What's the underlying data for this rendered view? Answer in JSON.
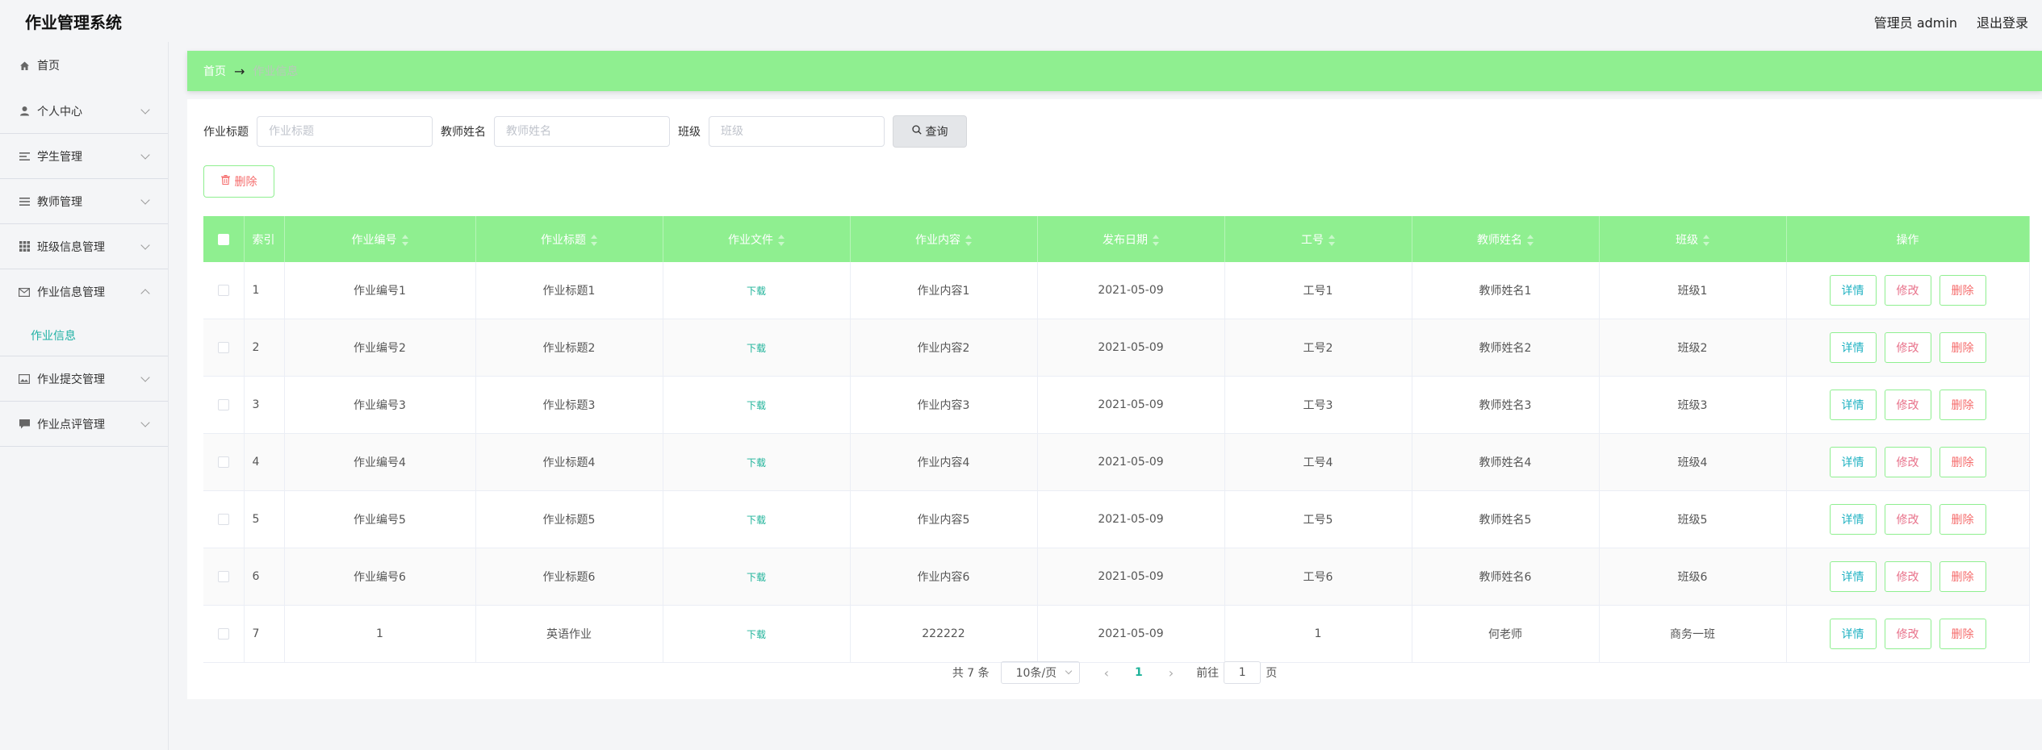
{
  "header": {
    "title": "作业管理系统",
    "user": "管理员 admin",
    "logout": "退出登录"
  },
  "sidebar": {
    "items": [
      {
        "label": "首页",
        "icon": "home-icon"
      },
      {
        "label": "个人中心",
        "icon": "user-icon"
      },
      {
        "label": "学生管理",
        "icon": "list-icon"
      },
      {
        "label": "教师管理",
        "icon": "menu-icon"
      },
      {
        "label": "班级信息管理",
        "icon": "grid-icon"
      },
      {
        "label": "作业信息管理",
        "icon": "message-icon"
      },
      {
        "label": "作业提交管理",
        "icon": "picture-icon"
      },
      {
        "label": "作业点评管理",
        "icon": "comment-icon"
      }
    ],
    "sub_item": "作业信息"
  },
  "breadcrumb": {
    "home": "首页",
    "current": "作业信息"
  },
  "search": {
    "title_label": "作业标题",
    "title_placeholder": "作业标题",
    "teacher_label": "教师姓名",
    "teacher_placeholder": "教师姓名",
    "class_label": "班级",
    "class_placeholder": "班级",
    "query_label": "查询"
  },
  "toolbar": {
    "delete_label": "删除"
  },
  "table": {
    "headers": {
      "index": "索引",
      "code": "作业编号",
      "title": "作业标题",
      "file": "作业文件",
      "content": "作业内容",
      "date": "发布日期",
      "job_no": "工号",
      "teacher": "教师姓名",
      "class": "班级",
      "ops": "操作"
    },
    "rows": [
      {
        "index": "1",
        "code": "作业编号1",
        "title": "作业标题1",
        "file": "下载",
        "content": "作业内容1",
        "date": "2021-05-09",
        "job_no": "工号1",
        "teacher": "教师姓名1",
        "class": "班级1"
      },
      {
        "index": "2",
        "code": "作业编号2",
        "title": "作业标题2",
        "file": "下载",
        "content": "作业内容2",
        "date": "2021-05-09",
        "job_no": "工号2",
        "teacher": "教师姓名2",
        "class": "班级2"
      },
      {
        "index": "3",
        "code": "作业编号3",
        "title": "作业标题3",
        "file": "下载",
        "content": "作业内容3",
        "date": "2021-05-09",
        "job_no": "工号3",
        "teacher": "教师姓名3",
        "class": "班级3"
      },
      {
        "index": "4",
        "code": "作业编号4",
        "title": "作业标题4",
        "file": "下载",
        "content": "作业内容4",
        "date": "2021-05-09",
        "job_no": "工号4",
        "teacher": "教师姓名4",
        "class": "班级4"
      },
      {
        "index": "5",
        "code": "作业编号5",
        "title": "作业标题5",
        "file": "下载",
        "content": "作业内容5",
        "date": "2021-05-09",
        "job_no": "工号5",
        "teacher": "教师姓名5",
        "class": "班级5"
      },
      {
        "index": "6",
        "code": "作业编号6",
        "title": "作业标题6",
        "file": "下载",
        "content": "作业内容6",
        "date": "2021-05-09",
        "job_no": "工号6",
        "teacher": "教师姓名6",
        "class": "班级6"
      },
      {
        "index": "7",
        "code": "1",
        "title": "英语作业",
        "file": "下载",
        "content": "222222",
        "date": "2021-05-09",
        "job_no": "1",
        "teacher": "何老师",
        "class": "商务一班"
      }
    ],
    "ops": {
      "detail": "详情",
      "edit": "修改",
      "delete": "删除"
    }
  },
  "pagination": {
    "total": "共 7 条",
    "page_size": "10条/页",
    "current_page": "1",
    "goto_prefix": "前往",
    "goto_value": "1",
    "goto_suffix": "页"
  },
  "colors": {
    "accent": "#8fef90",
    "link": "#1fb39a",
    "danger": "#f56c6c"
  }
}
